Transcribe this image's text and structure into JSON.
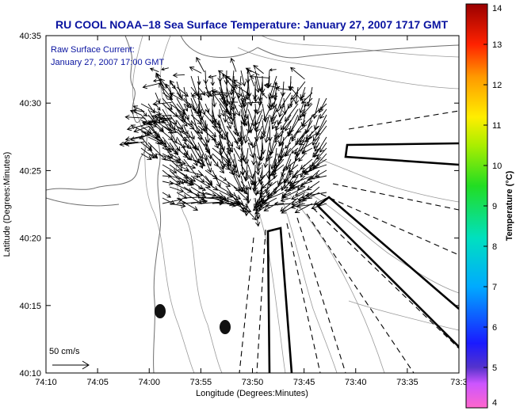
{
  "title": "RU COOL  NOAA–18  Sea Surface Temperature:  January 27, 2007 1717 GMT",
  "annotation": {
    "line1": "Raw Surface Current:",
    "line2": "January 27, 2007 17:00 GMT"
  },
  "scale_label": "50 cm/s",
  "axes": {
    "xlabel": "Longitude (Degrees:Minutes)",
    "ylabel": "Latitude (Degrees:Minutes)",
    "x_ticks": [
      "74:10",
      "74:05",
      "74:00",
      "73:55",
      "73:50",
      "73:45",
      "73:40",
      "73:35",
      "73:3"
    ],
    "y_ticks": [
      "40:35",
      "40:30",
      "40:25",
      "40:20",
      "40:15",
      "40:10"
    ]
  },
  "colorbar": {
    "label": "Temperature (°C)",
    "ticks": [
      "14",
      "13",
      "12",
      "11",
      "10",
      "9",
      "8",
      "7",
      "6",
      "5",
      "4"
    ],
    "min": 4,
    "max": 14
  },
  "colors": {
    "title": "#0a14a0",
    "vectors": "#000000",
    "bathymetry": "#9a9a9a",
    "coast": "#6e6e6e"
  }
}
